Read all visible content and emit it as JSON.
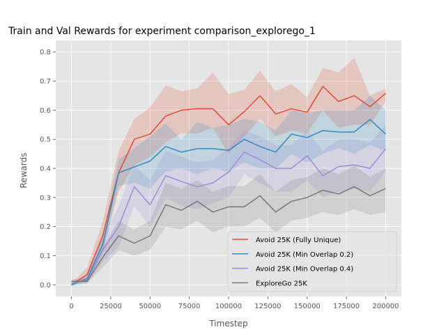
{
  "chart_data": {
    "type": "line",
    "title": "Train and Val Rewards for experiment comparison_explorego_1",
    "xlabel": "Timestep",
    "ylabel": "Rewards",
    "xlim": [
      -10000,
      210000
    ],
    "ylim": [
      -0.04,
      0.84
    ],
    "xticks": [
      0,
      25000,
      50000,
      75000,
      100000,
      125000,
      150000,
      175000,
      200000
    ],
    "yticks": [
      0.0,
      0.1,
      0.2,
      0.3,
      0.4,
      0.5,
      0.6,
      0.7,
      0.8
    ],
    "ytick_labels": [
      "0.0",
      "0.1",
      "0.2",
      "0.3",
      "0.4",
      "0.5",
      "0.6",
      "0.7",
      "0.8"
    ],
    "grid": true,
    "legend_position": "lower-right",
    "x": [
      0,
      10000,
      20000,
      30000,
      40000,
      50000,
      60000,
      70000,
      80000,
      90000,
      100000,
      110000,
      120000,
      130000,
      140000,
      150000,
      160000,
      170000,
      180000,
      190000,
      200000
    ],
    "series": [
      {
        "name": "Avoid 25K (Fully Unique)",
        "color": "#e24a33",
        "values": [
          0.0,
          0.035,
          0.17,
          0.385,
          0.5,
          0.518,
          0.58,
          0.6,
          0.605,
          0.605,
          0.55,
          0.595,
          0.65,
          0.587,
          0.605,
          0.593,
          0.682,
          0.63,
          0.65,
          0.612,
          0.658
        ],
        "lower": [
          0.0,
          0.02,
          0.12,
          0.32,
          0.41,
          0.44,
          0.49,
          0.52,
          0.52,
          0.54,
          0.45,
          0.51,
          0.57,
          0.51,
          0.53,
          0.52,
          0.6,
          0.54,
          0.55,
          0.55,
          0.63
        ],
        "upper": [
          0.005,
          0.06,
          0.22,
          0.46,
          0.57,
          0.61,
          0.685,
          0.665,
          0.675,
          0.73,
          0.655,
          0.67,
          0.735,
          0.665,
          0.69,
          0.645,
          0.745,
          0.73,
          0.78,
          0.65,
          0.675
        ]
      },
      {
        "name": "Avoid 25K (Min Overlap 0.2)",
        "color": "#348abd",
        "values": [
          0.0,
          0.02,
          0.14,
          0.385,
          0.405,
          0.425,
          0.475,
          0.456,
          0.468,
          0.468,
          0.462,
          0.5,
          0.475,
          0.456,
          0.518,
          0.506,
          0.53,
          0.525,
          0.525,
          0.568,
          0.518
        ],
        "lower": [
          -0.005,
          0.01,
          0.11,
          0.34,
          0.35,
          0.33,
          0.39,
          0.4,
          0.38,
          0.4,
          0.39,
          0.42,
          0.4,
          0.4,
          0.45,
          0.42,
          0.45,
          0.47,
          0.45,
          0.48,
          0.46
        ],
        "upper": [
          0.005,
          0.03,
          0.17,
          0.43,
          0.47,
          0.51,
          0.555,
          0.5,
          0.56,
          0.54,
          0.55,
          0.57,
          0.56,
          0.53,
          0.6,
          0.59,
          0.6,
          0.6,
          0.6,
          0.65,
          0.6
        ]
      },
      {
        "name": "Avoid 25K (Min Overlap 0.4)",
        "color": "#988ed5",
        "values": [
          0.005,
          0.015,
          0.12,
          0.2,
          0.337,
          0.275,
          0.375,
          0.355,
          0.337,
          0.35,
          0.387,
          0.456,
          0.43,
          0.4,
          0.4,
          0.443,
          0.375,
          0.406,
          0.412,
          0.4,
          0.468
        ],
        "lower": [
          0.0,
          0.005,
          0.08,
          0.13,
          0.27,
          0.2,
          0.3,
          0.27,
          0.26,
          0.28,
          0.3,
          0.38,
          0.35,
          0.32,
          0.32,
          0.36,
          0.3,
          0.32,
          0.33,
          0.32,
          0.39
        ],
        "upper": [
          0.01,
          0.03,
          0.17,
          0.27,
          0.41,
          0.36,
          0.46,
          0.44,
          0.42,
          0.43,
          0.47,
          0.53,
          0.51,
          0.48,
          0.48,
          0.53,
          0.46,
          0.5,
          0.5,
          0.49,
          0.55
        ]
      },
      {
        "name": "ExploreGo 25K",
        "color": "#777777",
        "values": [
          0.012,
          0.012,
          0.095,
          0.168,
          0.143,
          0.168,
          0.275,
          0.256,
          0.287,
          0.25,
          0.268,
          0.268,
          0.306,
          0.25,
          0.287,
          0.3,
          0.325,
          0.312,
          0.337,
          0.306,
          0.331
        ],
        "lower": [
          0.005,
          0.005,
          0.06,
          0.12,
          0.1,
          0.12,
          0.2,
          0.19,
          0.22,
          0.18,
          0.2,
          0.2,
          0.23,
          0.18,
          0.22,
          0.23,
          0.25,
          0.24,
          0.26,
          0.24,
          0.25
        ],
        "upper": [
          0.02,
          0.02,
          0.13,
          0.22,
          0.19,
          0.22,
          0.35,
          0.33,
          0.36,
          0.32,
          0.34,
          0.34,
          0.38,
          0.32,
          0.36,
          0.37,
          0.4,
          0.38,
          0.41,
          0.37,
          0.4
        ]
      }
    ]
  }
}
